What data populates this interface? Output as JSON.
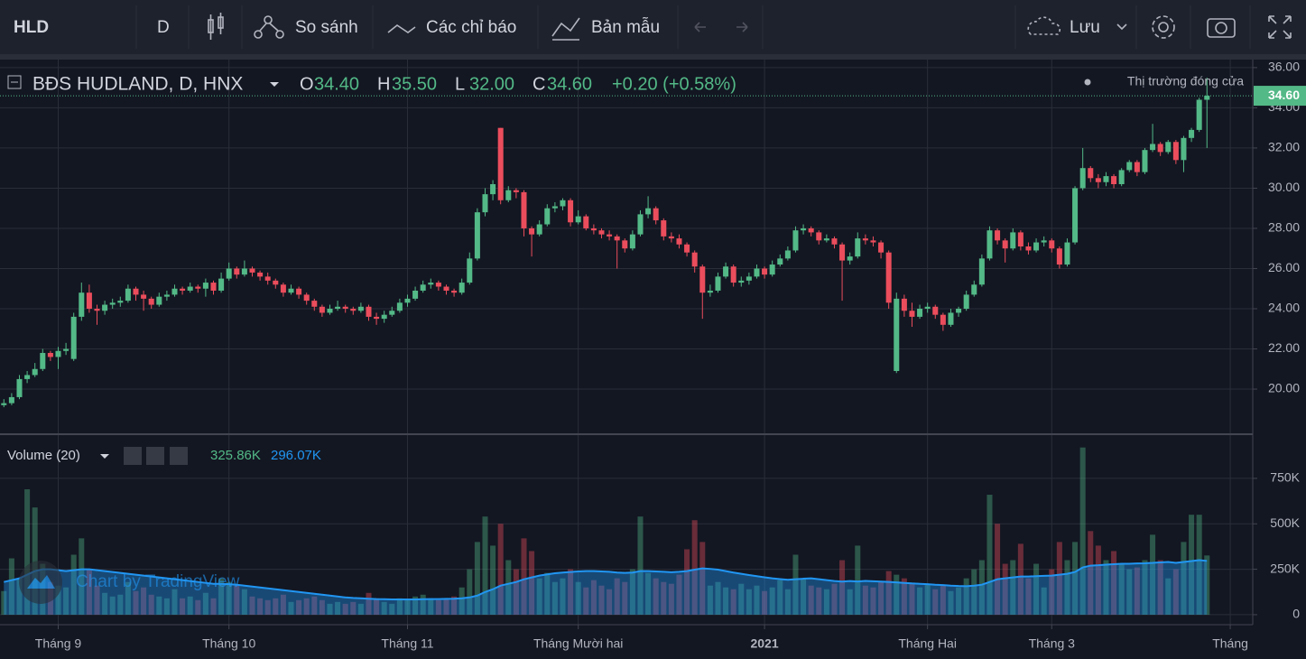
{
  "toolbar": {
    "symbol": "HLD",
    "interval": "D",
    "compare": "So sánh",
    "indicators": "Các chỉ báo",
    "templates": "Bản mẫu",
    "save": "Lưu"
  },
  "chart_data": {
    "type": "candlestick",
    "title": "BĐS HUDLAND, D, HNX",
    "ohlc_keys": [
      "O",
      "H",
      "L",
      "C"
    ],
    "ohlc_value_labels": [
      "34.40",
      "35.50",
      "32.00",
      "34.60"
    ],
    "change": "+0.20 (+0.58%)",
    "status": "Thị trường đóng cửa",
    "last_price_label": "34.60",
    "watermark": "Chart by TradingView",
    "volume_title": "Volume (20)",
    "volume_value_label": "325.86K",
    "volume_ma_label": "296.07K",
    "up_color": "#53b987",
    "down_color": "#eb4d5c",
    "ma_color": "#2196f3",
    "grid": true,
    "xlim": [
      -0.5,
      160.9
    ],
    "xticks": [
      {
        "value": 7,
        "label": "Tháng 9"
      },
      {
        "value": 29,
        "label": "Tháng 10"
      },
      {
        "value": 52,
        "label": "Tháng 11"
      },
      {
        "value": 74,
        "label": "Tháng Mười hai"
      },
      {
        "value": 98,
        "label": "2021"
      },
      {
        "value": 119,
        "label": "Tháng Hai"
      },
      {
        "value": 135,
        "label": "Tháng 3"
      },
      {
        "value": 158,
        "label": "Tháng"
      }
    ],
    "ylim": [
      17.8,
      36.4
    ],
    "yticks": [
      {
        "value": 20,
        "label": "20.00"
      },
      {
        "value": 22,
        "label": "22.00"
      },
      {
        "value": 24,
        "label": "24.00"
      },
      {
        "value": 26,
        "label": "26.00"
      },
      {
        "value": 28,
        "label": "28.00"
      },
      {
        "value": 30,
        "label": "30.00"
      },
      {
        "value": 32,
        "label": "32.00"
      },
      {
        "value": 34,
        "label": "34.00"
      },
      {
        "value": 36,
        "label": "36.00"
      }
    ],
    "y2lim": [
      -55000,
      988000
    ],
    "y2ticks": [
      0,
      {
        "value": 250000,
        "label": "250K"
      },
      {
        "value": 500000,
        "label": "500K"
      },
      {
        "value": 750000,
        "label": "750K"
      }
    ],
    "ohlc": [
      [
        19.2,
        19.5,
        19.1,
        19.3
      ],
      [
        19.3,
        19.8,
        19.2,
        19.6
      ],
      [
        19.6,
        20.7,
        19.5,
        20.5
      ],
      [
        20.5,
        20.9,
        20.3,
        20.7
      ],
      [
        20.7,
        21.3,
        20.6,
        21.0
      ],
      [
        21.0,
        22.0,
        20.9,
        21.8
      ],
      [
        21.8,
        21.9,
        21.4,
        21.6
      ],
      [
        21.6,
        22.1,
        21.0,
        21.9
      ],
      [
        21.9,
        22.3,
        21.7,
        22.0
      ],
      [
        21.5,
        23.8,
        21.4,
        23.6
      ],
      [
        23.6,
        25.3,
        23.4,
        24.8
      ],
      [
        24.8,
        25.2,
        23.8,
        24.0
      ],
      [
        24.0,
        24.2,
        23.2,
        23.9
      ],
      [
        23.9,
        24.4,
        23.7,
        24.2
      ],
      [
        24.2,
        24.5,
        24.0,
        24.3
      ],
      [
        24.3,
        24.6,
        24.1,
        24.4
      ],
      [
        24.4,
        25.2,
        24.3,
        25.0
      ],
      [
        25.0,
        25.1,
        24.4,
        24.7
      ],
      [
        24.7,
        24.9,
        23.9,
        24.5
      ],
      [
        24.5,
        24.6,
        24.0,
        24.2
      ],
      [
        24.2,
        24.8,
        24.1,
        24.6
      ],
      [
        24.6,
        24.9,
        24.4,
        24.7
      ],
      [
        24.7,
        25.2,
        24.6,
        25.0
      ],
      [
        25.0,
        25.1,
        24.7,
        24.9
      ],
      [
        24.9,
        25.3,
        24.8,
        25.1
      ],
      [
        25.1,
        25.2,
        24.8,
        25.0
      ],
      [
        25.0,
        25.5,
        24.6,
        25.3
      ],
      [
        25.3,
        25.4,
        24.7,
        24.9
      ],
      [
        24.9,
        25.8,
        24.8,
        25.5
      ],
      [
        25.5,
        26.3,
        25.4,
        26.0
      ],
      [
        26.0,
        26.1,
        25.5,
        25.7
      ],
      [
        25.7,
        26.4,
        25.6,
        26.0
      ],
      [
        26.0,
        26.1,
        25.6,
        25.8
      ],
      [
        25.8,
        25.9,
        25.4,
        25.6
      ],
      [
        25.6,
        25.8,
        25.2,
        25.4
      ],
      [
        25.4,
        25.5,
        25.0,
        25.2
      ],
      [
        25.2,
        25.3,
        24.6,
        24.8
      ],
      [
        24.8,
        25.2,
        24.7,
        25.0
      ],
      [
        25.0,
        25.1,
        24.5,
        24.7
      ],
      [
        24.7,
        24.8,
        24.2,
        24.4
      ],
      [
        24.4,
        24.5,
        23.9,
        24.1
      ],
      [
        24.1,
        24.2,
        23.6,
        23.8
      ],
      [
        23.8,
        24.2,
        23.7,
        24.0
      ],
      [
        24.0,
        24.4,
        23.9,
        24.1
      ],
      [
        24.1,
        24.2,
        23.8,
        24.0
      ],
      [
        24.0,
        24.1,
        23.7,
        23.9
      ],
      [
        23.9,
        24.3,
        23.8,
        24.1
      ],
      [
        24.1,
        24.2,
        23.4,
        23.6
      ],
      [
        23.6,
        23.8,
        23.2,
        23.5
      ],
      [
        23.5,
        23.9,
        23.3,
        23.7
      ],
      [
        23.7,
        24.1,
        23.6,
        23.9
      ],
      [
        23.9,
        24.5,
        23.8,
        24.3
      ],
      [
        24.3,
        24.7,
        24.1,
        24.5
      ],
      [
        24.5,
        25.1,
        24.4,
        24.9
      ],
      [
        24.9,
        25.4,
        24.8,
        25.2
      ],
      [
        25.2,
        25.5,
        25.0,
        25.3
      ],
      [
        25.3,
        25.4,
        24.9,
        25.1
      ],
      [
        25.1,
        25.2,
        24.7,
        24.9
      ],
      [
        24.9,
        25.0,
        24.6,
        24.8
      ],
      [
        24.8,
        25.5,
        24.7,
        25.3
      ],
      [
        25.3,
        26.8,
        25.2,
        26.5
      ],
      [
        26.5,
        29.0,
        26.4,
        28.8
      ],
      [
        28.8,
        30.0,
        28.6,
        29.7
      ],
      [
        29.7,
        30.4,
        29.4,
        30.2
      ],
      [
        33.0,
        33.0,
        29.2,
        29.4
      ],
      [
        29.4,
        30.1,
        29.3,
        29.9
      ],
      [
        29.9,
        30.0,
        29.5,
        29.8
      ],
      [
        29.8,
        29.9,
        27.6,
        28.0
      ],
      [
        28.0,
        28.1,
        26.6,
        27.7
      ],
      [
        27.7,
        28.4,
        27.6,
        28.2
      ],
      [
        28.2,
        29.2,
        28.1,
        29.0
      ],
      [
        29.0,
        29.3,
        28.8,
        29.1
      ],
      [
        29.1,
        29.5,
        28.9,
        29.4
      ],
      [
        29.4,
        29.5,
        28.1,
        28.3
      ],
      [
        28.3,
        28.9,
        28.2,
        28.6
      ],
      [
        28.6,
        28.7,
        27.9,
        28.0
      ],
      [
        28.0,
        28.2,
        27.7,
        27.9
      ],
      [
        27.9,
        28.0,
        27.5,
        27.7
      ],
      [
        27.7,
        27.9,
        27.4,
        27.6
      ],
      [
        27.6,
        27.7,
        26.0,
        27.4
      ],
      [
        27.4,
        27.5,
        26.8,
        27.0
      ],
      [
        27.0,
        27.9,
        26.9,
        27.7
      ],
      [
        27.7,
        28.9,
        27.6,
        28.7
      ],
      [
        28.7,
        29.6,
        28.5,
        29.0
      ],
      [
        29.0,
        29.1,
        28.2,
        28.4
      ],
      [
        28.4,
        28.5,
        27.4,
        27.6
      ],
      [
        27.6,
        27.8,
        27.3,
        27.5
      ],
      [
        27.5,
        27.7,
        27.0,
        27.2
      ],
      [
        27.2,
        27.3,
        26.6,
        26.8
      ],
      [
        26.8,
        26.9,
        25.8,
        26.1
      ],
      [
        26.1,
        26.2,
        23.5,
        24.8
      ],
      [
        24.8,
        25.2,
        24.6,
        24.9
      ],
      [
        24.9,
        25.8,
        24.8,
        25.6
      ],
      [
        25.6,
        26.3,
        25.5,
        26.1
      ],
      [
        26.1,
        26.2,
        25.1,
        25.3
      ],
      [
        25.3,
        25.6,
        25.1,
        25.4
      ],
      [
        25.4,
        25.8,
        25.2,
        25.6
      ],
      [
        25.6,
        26.2,
        25.5,
        26.0
      ],
      [
        26.0,
        26.1,
        25.5,
        25.7
      ],
      [
        25.7,
        26.4,
        25.6,
        26.2
      ],
      [
        26.2,
        26.7,
        26.1,
        26.5
      ],
      [
        26.5,
        27.1,
        26.4,
        26.9
      ],
      [
        26.9,
        28.1,
        26.8,
        27.9
      ],
      [
        27.9,
        28.2,
        27.7,
        28.0
      ],
      [
        28.0,
        28.1,
        27.6,
        27.8
      ],
      [
        27.8,
        27.9,
        27.2,
        27.4
      ],
      [
        27.4,
        27.7,
        27.3,
        27.5
      ],
      [
        27.5,
        27.6,
        27.0,
        27.2
      ],
      [
        27.2,
        27.3,
        24.4,
        26.4
      ],
      [
        26.4,
        26.8,
        26.2,
        26.6
      ],
      [
        26.6,
        27.8,
        26.5,
        27.5
      ],
      [
        27.5,
        27.7,
        27.2,
        27.4
      ],
      [
        27.4,
        27.6,
        27.1,
        27.3
      ],
      [
        27.3,
        27.4,
        26.5,
        26.8
      ],
      [
        26.8,
        26.9,
        24.0,
        24.3
      ],
      [
        20.9,
        24.8,
        20.8,
        24.5
      ],
      [
        24.5,
        24.7,
        23.6,
        23.9
      ],
      [
        23.9,
        24.3,
        23.1,
        23.6
      ],
      [
        23.6,
        24.2,
        23.5,
        24.0
      ],
      [
        24.0,
        24.3,
        23.8,
        24.1
      ],
      [
        24.1,
        24.2,
        23.5,
        23.7
      ],
      [
        23.7,
        23.8,
        22.9,
        23.2
      ],
      [
        23.2,
        24.0,
        23.1,
        23.8
      ],
      [
        23.8,
        24.1,
        23.6,
        24.0
      ],
      [
        24.0,
        24.9,
        23.9,
        24.7
      ],
      [
        24.7,
        25.4,
        24.6,
        25.2
      ],
      [
        25.2,
        26.7,
        25.1,
        26.5
      ],
      [
        26.5,
        28.1,
        26.4,
        27.9
      ],
      [
        27.9,
        28.0,
        27.2,
        27.4
      ],
      [
        27.4,
        27.5,
        26.3,
        27.0
      ],
      [
        27.0,
        28.0,
        26.9,
        27.8
      ],
      [
        27.8,
        27.9,
        26.9,
        27.1
      ],
      [
        27.1,
        27.3,
        26.7,
        26.9
      ],
      [
        26.9,
        27.5,
        26.8,
        27.3
      ],
      [
        27.3,
        27.6,
        27.1,
        27.4
      ],
      [
        27.4,
        27.5,
        26.8,
        27.0
      ],
      [
        27.0,
        27.1,
        26.0,
        26.2
      ],
      [
        26.2,
        27.5,
        26.1,
        27.3
      ],
      [
        27.3,
        30.1,
        27.2,
        30.0
      ],
      [
        30.0,
        32.0,
        29.9,
        31.0
      ],
      [
        31.0,
        31.1,
        30.3,
        30.5
      ],
      [
        30.5,
        30.7,
        30.0,
        30.3
      ],
      [
        30.3,
        30.8,
        30.1,
        30.6
      ],
      [
        30.6,
        30.7,
        30.0,
        30.2
      ],
      [
        30.2,
        31.0,
        30.1,
        30.9
      ],
      [
        30.9,
        31.4,
        30.8,
        31.3
      ],
      [
        31.3,
        31.4,
        30.6,
        30.8
      ],
      [
        30.8,
        32.0,
        30.7,
        31.9
      ],
      [
        31.9,
        33.2,
        31.8,
        32.2
      ],
      [
        32.2,
        32.3,
        31.6,
        31.8
      ],
      [
        31.8,
        32.4,
        31.7,
        32.3
      ],
      [
        32.3,
        32.4,
        31.2,
        31.4
      ],
      [
        31.4,
        32.6,
        30.8,
        32.5
      ],
      [
        32.5,
        33.0,
        32.3,
        32.9
      ],
      [
        32.9,
        34.5,
        32.8,
        34.4
      ],
      [
        34.4,
        35.5,
        32.0,
        34.6
      ]
    ],
    "volume": [
      130000,
      310000,
      200000,
      690000,
      590000,
      280000,
      180000,
      160000,
      150000,
      330000,
      420000,
      250000,
      160000,
      120000,
      100000,
      110000,
      180000,
      130000,
      150000,
      110000,
      100000,
      90000,
      140000,
      90000,
      100000,
      80000,
      120000,
      90000,
      200000,
      180000,
      160000,
      140000,
      100000,
      90000,
      80000,
      90000,
      110000,
      70000,
      80000,
      90000,
      100000,
      80000,
      60000,
      70000,
      60000,
      70000,
      60000,
      120000,
      90000,
      70000,
      60000,
      90000,
      80000,
      100000,
      110000,
      90000,
      80000,
      90000,
      100000,
      150000,
      250000,
      400000,
      540000,
      380000,
      500000,
      300000,
      250000,
      420000,
      350000,
      200000,
      230000,
      180000,
      200000,
      250000,
      180000,
      150000,
      190000,
      160000,
      140000,
      200000,
      180000,
      250000,
      540000,
      230000,
      200000,
      180000,
      170000,
      220000,
      360000,
      520000,
      400000,
      160000,
      180000,
      150000,
      140000,
      170000,
      140000,
      160000,
      130000,
      150000,
      190000,
      140000,
      330000,
      200000,
      160000,
      150000,
      140000,
      170000,
      300000,
      140000,
      380000,
      160000,
      150000,
      180000,
      240000,
      220000,
      200000,
      170000,
      150000,
      170000,
      140000,
      160000,
      130000,
      150000,
      200000,
      250000,
      300000,
      660000,
      500000,
      280000,
      300000,
      390000,
      200000,
      280000,
      150000,
      250000,
      400000,
      300000,
      400000,
      920000,
      460000,
      380000,
      300000,
      350000,
      280000,
      250000,
      260000,
      300000,
      440000,
      300000,
      200000,
      250000,
      400000,
      550000,
      550000,
      325860
    ],
    "volume_ma": [
      180000,
      190000,
      200000,
      220000,
      240000,
      250000,
      250000,
      245000,
      240000,
      245000,
      250000,
      250000,
      245000,
      240000,
      235000,
      230000,
      225000,
      220000,
      215000,
      210000,
      205000,
      200000,
      195000,
      190000,
      185000,
      180000,
      175000,
      170000,
      170000,
      168000,
      165000,
      160000,
      155000,
      150000,
      145000,
      140000,
      135000,
      130000,
      125000,
      120000,
      115000,
      110000,
      105000,
      100000,
      95000,
      92000,
      90000,
      88000,
      86000,
      85000,
      84000,
      84000,
      84000,
      84000,
      85000,
      86000,
      86000,
      87000,
      88000,
      90000,
      95000,
      105000,
      125000,
      140000,
      160000,
      170000,
      180000,
      195000,
      205000,
      215000,
      222000,
      228000,
      232000,
      235000,
      238000,
      240000,
      240000,
      238000,
      236000,
      232000,
      230000,
      232000,
      240000,
      240000,
      238000,
      236000,
      234000,
      236000,
      240000,
      248000,
      255000,
      252000,
      248000,
      240000,
      232000,
      225000,
      218000,
      212000,
      206000,
      200000,
      196000,
      192000,
      195000,
      198000,
      200000,
      195000,
      190000,
      185000,
      182000,
      185000,
      183000,
      186000,
      184000,
      182000,
      180000,
      178000,
      175000,
      172000,
      170000,
      168000,
      165000,
      163000,
      160000,
      158000,
      157000,
      160000,
      165000,
      180000,
      195000,
      200000,
      205000,
      210000,
      210000,
      212000,
      214000,
      215000,
      220000,
      225000,
      235000,
      260000,
      270000,
      272000,
      275000,
      278000,
      280000,
      280000,
      282000,
      283000,
      285000,
      288000,
      290000,
      285000,
      290000,
      295000,
      300000,
      296070
    ]
  }
}
